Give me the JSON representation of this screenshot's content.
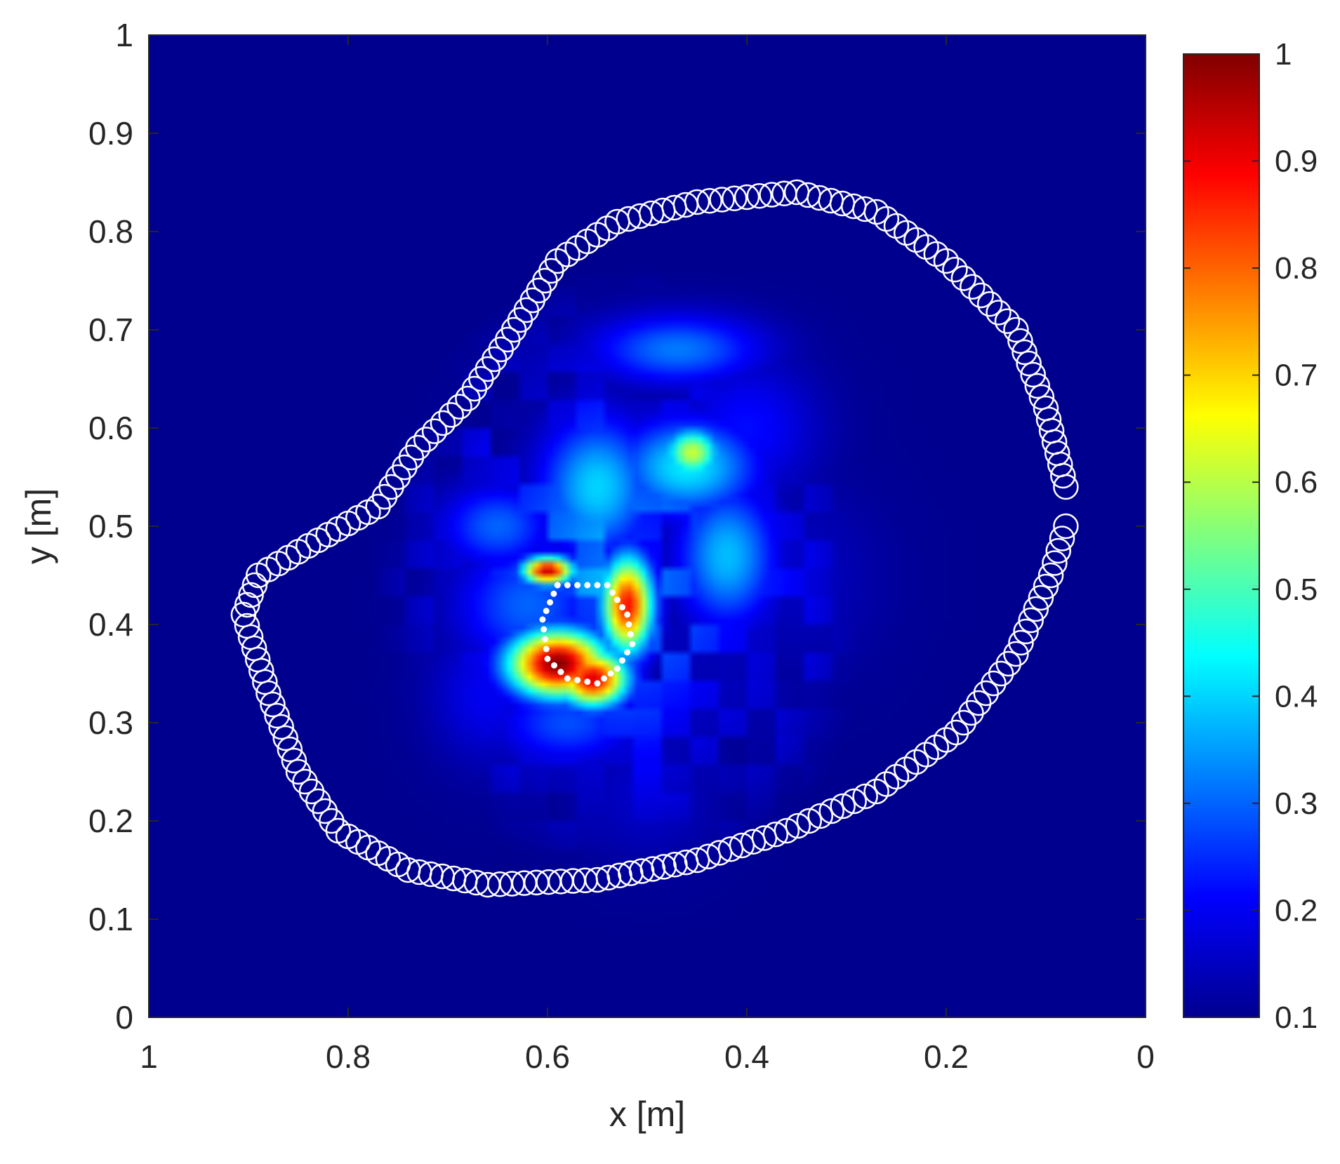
{
  "chart_data": {
    "type": "heatmap",
    "title": "",
    "xlabel": "x [m]",
    "ylabel": "y [m]",
    "xlim": [
      1,
      0
    ],
    "ylim": [
      0,
      1
    ],
    "x_reversed": true,
    "xticks": [
      "1",
      "0.8",
      "0.6",
      "0.4",
      "0.2",
      "0"
    ],
    "yticks": [
      "0",
      "0.1",
      "0.2",
      "0.3",
      "0.4",
      "0.5",
      "0.6",
      "0.7",
      "0.8",
      "0.9",
      "1"
    ],
    "grid": false,
    "colormap": "jet",
    "background_color": "#00008f",
    "colorbar": {
      "limits": [
        0.1,
        1
      ],
      "ticks": [
        "1",
        "0.9",
        "0.8",
        "0.7",
        "0.6",
        "0.5",
        "0.4",
        "0.3",
        "0.2",
        "0.1"
      ],
      "stops": [
        {
          "v": 0.0,
          "c": "#00008f"
        },
        {
          "v": 0.125,
          "c": "#0000ff"
        },
        {
          "v": 0.375,
          "c": "#00ffff"
        },
        {
          "v": 0.5,
          "c": "#7fff7f"
        },
        {
          "v": 0.625,
          "c": "#ffff00"
        },
        {
          "v": 0.875,
          "c": "#ff0000"
        },
        {
          "v": 1.0,
          "c": "#800000"
        }
      ]
    },
    "blobs": [
      {
        "x": 0.59,
        "y": 0.36,
        "sx": 0.035,
        "sy": 0.024,
        "v": 1.0
      },
      {
        "x": 0.555,
        "y": 0.345,
        "sx": 0.025,
        "sy": 0.02,
        "v": 0.92
      },
      {
        "x": 0.52,
        "y": 0.42,
        "sx": 0.018,
        "sy": 0.035,
        "v": 0.88
      },
      {
        "x": 0.6,
        "y": 0.455,
        "sx": 0.018,
        "sy": 0.01,
        "v": 0.95
      },
      {
        "x": 0.455,
        "y": 0.575,
        "sx": 0.02,
        "sy": 0.018,
        "v": 0.62
      },
      {
        "x": 0.46,
        "y": 0.56,
        "sx": 0.05,
        "sy": 0.035,
        "v": 0.42
      },
      {
        "x": 0.55,
        "y": 0.54,
        "sx": 0.04,
        "sy": 0.05,
        "v": 0.4
      },
      {
        "x": 0.42,
        "y": 0.47,
        "sx": 0.035,
        "sy": 0.05,
        "v": 0.38
      },
      {
        "x": 0.47,
        "y": 0.68,
        "sx": 0.06,
        "sy": 0.025,
        "v": 0.32
      },
      {
        "x": 0.62,
        "y": 0.42,
        "sx": 0.05,
        "sy": 0.045,
        "v": 0.3
      },
      {
        "x": 0.58,
        "y": 0.3,
        "sx": 0.05,
        "sy": 0.03,
        "v": 0.28
      },
      {
        "x": 0.65,
        "y": 0.5,
        "sx": 0.04,
        "sy": 0.03,
        "v": 0.3
      },
      {
        "x": 0.4,
        "y": 0.6,
        "sx": 0.05,
        "sy": 0.05,
        "v": 0.22
      },
      {
        "x": 0.5,
        "y": 0.23,
        "sx": 0.05,
        "sy": 0.05,
        "v": 0.16
      },
      {
        "x": 0.35,
        "y": 0.45,
        "sx": 0.06,
        "sy": 0.07,
        "v": 0.15
      },
      {
        "x": 0.66,
        "y": 0.33,
        "sx": 0.04,
        "sy": 0.05,
        "v": 0.2
      }
    ],
    "series": [
      {
        "type": "boundary-markers",
        "marker": "open-circle",
        "color": "#ffffff",
        "points": [
          [
            0.08,
            0.54
          ],
          [
            0.1,
            0.62
          ],
          [
            0.13,
            0.7
          ],
          [
            0.2,
            0.77
          ],
          [
            0.27,
            0.82
          ],
          [
            0.35,
            0.84
          ],
          [
            0.45,
            0.83
          ],
          [
            0.53,
            0.81
          ],
          [
            0.59,
            0.77
          ],
          [
            0.64,
            0.69
          ],
          [
            0.68,
            0.63
          ],
          [
            0.73,
            0.58
          ],
          [
            0.77,
            0.52
          ],
          [
            0.84,
            0.48
          ],
          [
            0.89,
            0.45
          ],
          [
            0.905,
            0.41
          ],
          [
            0.88,
            0.33
          ],
          [
            0.85,
            0.25
          ],
          [
            0.81,
            0.19
          ],
          [
            0.74,
            0.15
          ],
          [
            0.66,
            0.135
          ],
          [
            0.55,
            0.14
          ],
          [
            0.45,
            0.16
          ],
          [
            0.36,
            0.19
          ],
          [
            0.27,
            0.23
          ],
          [
            0.19,
            0.29
          ],
          [
            0.13,
            0.37
          ],
          [
            0.095,
            0.45
          ],
          [
            0.08,
            0.5
          ]
        ]
      },
      {
        "type": "object-outline",
        "marker": "dotted",
        "color": "#ffffff",
        "points": [
          [
            0.59,
            0.44
          ],
          [
            0.54,
            0.44
          ],
          [
            0.52,
            0.41
          ],
          [
            0.515,
            0.38
          ],
          [
            0.53,
            0.355
          ],
          [
            0.55,
            0.34
          ],
          [
            0.58,
            0.345
          ],
          [
            0.6,
            0.365
          ],
          [
            0.605,
            0.405
          ],
          [
            0.59,
            0.44
          ]
        ]
      }
    ]
  }
}
